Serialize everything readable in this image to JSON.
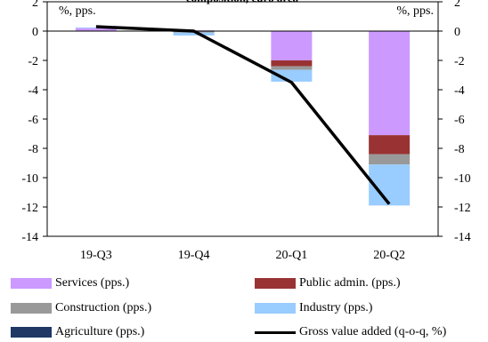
{
  "chart_data": {
    "type": "bar",
    "title": "composition, euro area",
    "left_unit": "%, pps.",
    "right_unit": "%, pps.",
    "categories": [
      "19-Q3",
      "19-Q4",
      "20-Q1",
      "20-Q2"
    ],
    "ylim": [
      -14,
      2
    ],
    "yticks": [
      2,
      0,
      -2,
      -4,
      -6,
      -8,
      -10,
      -12,
      -14
    ],
    "stacked": true,
    "series": [
      {
        "name": "Agriculture (pps.)",
        "color": "#1f3864",
        "values": [
          0.0,
          0.0,
          0.0,
          0.0
        ]
      },
      {
        "name": "Services (pps.)",
        "color": "#cc99ff",
        "values": [
          0.2,
          0.05,
          -2.0,
          -7.1
        ]
      },
      {
        "name": "Public admin. (pps.)",
        "color": "#993333",
        "values": [
          0.0,
          0.0,
          -0.4,
          -1.3
        ]
      },
      {
        "name": "Construction (pps.)",
        "color": "#999999",
        "values": [
          0.0,
          -0.1,
          -0.25,
          -0.7
        ]
      },
      {
        "name": "Industry (pps.)",
        "color": "#99ccff",
        "values": [
          0.05,
          -0.2,
          -0.8,
          -2.8
        ]
      }
    ],
    "line": {
      "name": "Gross value added (q-o-q, %)",
      "color": "#000000",
      "values": [
        0.3,
        0.0,
        -3.5,
        -11.8
      ]
    },
    "grid": false,
    "legend_position": "bottom"
  },
  "legend": [
    {
      "label": "Services (pps.)",
      "color": "#cc99ff",
      "kind": "bar"
    },
    {
      "label": "Public admin. (pps.)",
      "color": "#993333",
      "kind": "bar"
    },
    {
      "label": "Construction (pps.)",
      "color": "#999999",
      "kind": "bar"
    },
    {
      "label": "Industry (pps.)",
      "color": "#99ccff",
      "kind": "bar"
    },
    {
      "label": "Agriculture (pps.)",
      "color": "#1f3864",
      "kind": "bar"
    },
    {
      "label": "Gross value added (q-o-q, %)",
      "color": "#000000",
      "kind": "line"
    }
  ]
}
